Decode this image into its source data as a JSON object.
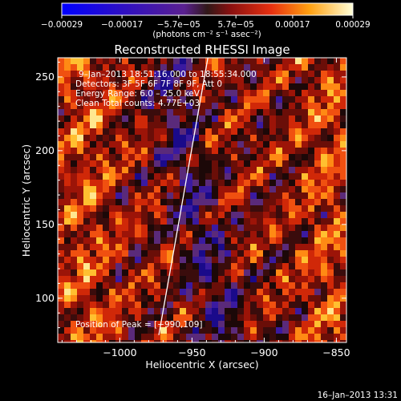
{
  "chart_data": {
    "type": "heatmap",
    "title": "Reconstructed RHESSI Image",
    "xlabel": "Heliocentric X (arcsec)",
    "ylabel": "Heliocentric Y (arcsec)",
    "xlim": [
      -1043,
      -843
    ],
    "ylim": [
      70,
      263
    ],
    "x_ticks": [
      -1000,
      -950,
      -900,
      -850
    ],
    "x_tick_labels": [
      "−1000",
      "−950",
      "−900",
      "−850"
    ],
    "y_ticks": [
      100,
      150,
      200,
      250
    ],
    "y_tick_labels": [
      "100",
      "150",
      "200",
      "250"
    ],
    "colorbar": {
      "ticks": [
        -0.00029,
        -0.00017,
        -5.7e-05,
        5.7e-05,
        0.00017,
        0.00029
      ],
      "tick_labels": [
        "−0.00029",
        "−0.00017",
        "−5.7e−05",
        "5.7e−05",
        "0.00017",
        "0.00029"
      ],
      "unit_label": "(photons cm⁻² s⁻¹ asec⁻²)",
      "range": [
        -0.00029,
        0.00029
      ]
    },
    "annotations": [
      "9–Jan–2013 18:51:16.000 to 18:55:34.000",
      "Detectors: 3F 5F 6F 7F 8F 9F, Att 0",
      "Energy Range: 6.0 – 25.0 keV",
      "Clean    Total counts: 4.77E+03"
    ],
    "peak_label": "Position of Peak = [−990,109]",
    "limb_line": {
      "x": [
        -973,
        -939
      ],
      "y": [
        75,
        263
      ]
    },
    "grid": false
  },
  "footer_timestamp": "16–Jan–2013 13:31"
}
